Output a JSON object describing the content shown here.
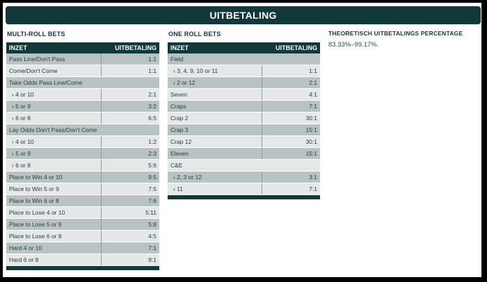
{
  "banner_title": "UITBETALING",
  "multi": {
    "title": "MULTI-ROLL BETS",
    "header": {
      "col1": "INZET",
      "col2": "UITBETALING"
    },
    "rows": [
      {
        "label": "Pass Line/Don't Pass",
        "value": "1:1",
        "sub": false,
        "span": false
      },
      {
        "label": "Come/Don't Come",
        "value": "1:1",
        "sub": false,
        "span": false
      },
      {
        "label": "Take Odds Pass Line/Come",
        "value": "",
        "sub": false,
        "span": true
      },
      {
        "label": "› 4 or 10",
        "value": "2:1",
        "sub": true,
        "span": false
      },
      {
        "label": "› 5 or 9",
        "value": "3:2",
        "sub": true,
        "span": false
      },
      {
        "label": "› 6 or 8",
        "value": "6:5",
        "sub": true,
        "span": false
      },
      {
        "label": "Lay Odds Don't Pass/Don't Come",
        "value": "",
        "sub": false,
        "span": true
      },
      {
        "label": "› 4 or 10",
        "value": "1:2",
        "sub": true,
        "span": false
      },
      {
        "label": "› 5 or 9",
        "value": "2:3",
        "sub": true,
        "span": false
      },
      {
        "label": "› 6 or 8",
        "value": "5:6",
        "sub": true,
        "span": false
      },
      {
        "label": "Place to Win 4 or 10",
        "value": "9:5",
        "sub": false,
        "span": false
      },
      {
        "label": "Place to Win 5 or 9",
        "value": "7:5",
        "sub": false,
        "span": false
      },
      {
        "label": "Place to Win 6 or 8",
        "value": "7:6",
        "sub": false,
        "span": false
      },
      {
        "label": "Place to Lose 4 or 10",
        "value": "5:11",
        "sub": false,
        "span": false
      },
      {
        "label": "Place to Lose 5 or 9",
        "value": "5:8",
        "sub": false,
        "span": false
      },
      {
        "label": "Place to Lose 6 or 8",
        "value": "4:5",
        "sub": false,
        "span": false
      },
      {
        "label": "Hard 4 or 10",
        "value": "7:1",
        "sub": false,
        "span": false
      },
      {
        "label": "Hard 6 or 8",
        "value": "9:1",
        "sub": false,
        "span": false
      }
    ]
  },
  "one": {
    "title": "ONE ROLL BETS",
    "header": {
      "col1": "INZET",
      "col2": "UITBETALING"
    },
    "rows": [
      {
        "label": "Field",
        "value": "",
        "sub": false,
        "span": true
      },
      {
        "label": "› 3, 4, 9, 10 or 11",
        "value": "1:1",
        "sub": true,
        "span": false
      },
      {
        "label": "› 2 or 12",
        "value": "2:1",
        "sub": true,
        "span": false
      },
      {
        "label": "Seven",
        "value": "4:1",
        "sub": false,
        "span": false
      },
      {
        "label": "Craps",
        "value": "7:1",
        "sub": false,
        "span": false
      },
      {
        "label": "Crap 2",
        "value": "30:1",
        "sub": false,
        "span": false
      },
      {
        "label": "Crap 3",
        "value": "15:1",
        "sub": false,
        "span": false
      },
      {
        "label": "Crap 12",
        "value": "30:1",
        "sub": false,
        "span": false
      },
      {
        "label": "Eleven",
        "value": "15:1",
        "sub": false,
        "span": false
      },
      {
        "label": "C&E",
        "value": "",
        "sub": false,
        "span": true
      },
      {
        "label": "› 2, 3 or 12",
        "value": "3:1",
        "sub": true,
        "span": false
      },
      {
        "label": "› 11",
        "value": "7:1",
        "sub": true,
        "span": false
      }
    ]
  },
  "percentage": {
    "title": "THEORETISCH UITBETALINGS PERCENTAGE",
    "value": "83.33%–99.17%."
  }
}
